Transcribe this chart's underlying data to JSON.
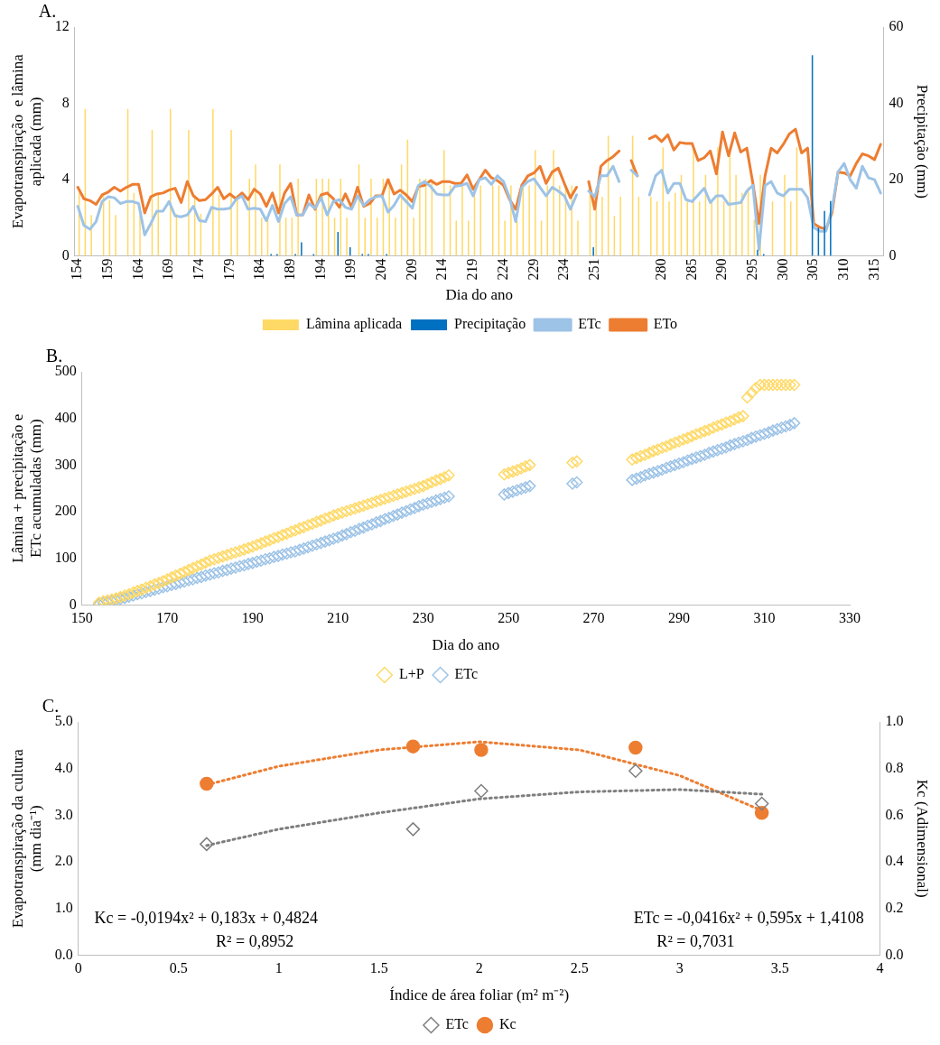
{
  "chart_data": [
    {
      "type": "bar",
      "title": "A.",
      "xlabel": "Dia do ano",
      "ylabel": "Evapotranspiração  e lâmina aplicada (mm)",
      "y2label": "Precipitação (mm)",
      "legend": "bottom",
      "categories": [
        "154",
        null,
        null,
        null,
        null,
        "159",
        null,
        null,
        null,
        null,
        "164",
        null,
        null,
        null,
        null,
        "169",
        null,
        null,
        null,
        null,
        "174",
        null,
        null,
        null,
        null,
        "179",
        null,
        null,
        null,
        null,
        "184",
        null,
        null,
        null,
        null,
        "189",
        null,
        null,
        null,
        null,
        "194",
        null,
        null,
        null,
        null,
        "199",
        null,
        null,
        null,
        null,
        "204",
        null,
        null,
        null,
        null,
        "209",
        null,
        null,
        null,
        null,
        "214",
        null,
        null,
        null,
        null,
        "219",
        null,
        null,
        null,
        null,
        "224",
        null,
        null,
        null,
        null,
        "229",
        null,
        null,
        null,
        null,
        "234",
        null,
        null,
        null,
        null,
        "251",
        null,
        null,
        null,
        null,
        null,
        null,
        null,
        null,
        null,
        null,
        "280",
        null,
        null,
        null,
        null,
        "285",
        null,
        null,
        null,
        null,
        "290",
        null,
        null,
        null,
        null,
        "295",
        null,
        null,
        null,
        null,
        "300",
        null,
        null,
        null,
        null,
        "305",
        null,
        null,
        null,
        null,
        "310",
        null,
        null,
        null,
        null,
        "315",
        null
      ],
      "ylim": [
        0,
        12
      ],
      "yticks": [
        0,
        4,
        8,
        12
      ],
      "y2lim": [
        0,
        60
      ],
      "y2ticks": [
        0,
        20,
        40,
        60
      ],
      "series": [
        {
          "name": "Lâmina aplicada",
          "type": "bar",
          "color": "#ffd966",
          "values": [
            3.3,
            7.7,
            2.15,
            null,
            3.2,
            2.95,
            2.15,
            null,
            7.7,
            3.3,
            2.15,
            null,
            6.6,
            3.2,
            null,
            7.7,
            2.2,
            null,
            6.6,
            3.2,
            2.2,
            null,
            7.7,
            3.2,
            null,
            6.6,
            3.2,
            null,
            4.05,
            4.8,
            2.0,
            2.0,
            null,
            4.8,
            2.0,
            2.0,
            4.05,
            null,
            null,
            4.05,
            4.05,
            4.05,
            2.0,
            4.05,
            2.0,
            null,
            4.8,
            2.0,
            4.05,
            2.0,
            4.05,
            4.05,
            2.0,
            4.8,
            6.1,
            2.0,
            4.05,
            4.05,
            4.05,
            null,
            5.55,
            3.7,
            1.85,
            3.7,
            1.85,
            3.7,
            3.7,
            null,
            3.7,
            3.7,
            1.85,
            3.7,
            1.85,
            3.7,
            3.7,
            5.55,
            1.85,
            3.7,
            5.55,
            3.7,
            3.7,
            3.7,
            1.85,
            null,
            3.7,
            3.6,
            3.1,
            6.3,
            2.1,
            3.1,
            null,
            6.3,
            3.1,
            null,
            3.1,
            2.85,
            5.7,
            2.85,
            3.3,
            4.25,
            2.85,
            5.7,
            2.85,
            4.25,
            2.85,
            5.7,
            2.85,
            5.7,
            4.25,
            3.3,
            3.6,
            1.9,
            4.25,
            null,
            2.85,
            null,
            4.25,
            2.85,
            5.7,
            null,
            null,
            null,
            null,
            null,
            null,
            null,
            null,
            null,
            null,
            null,
            null,
            null,
            null
          ]
        },
        {
          "name": "Precipitação",
          "type": "bar",
          "axis": "y2",
          "color": "#0070c0",
          "values": [
            null,
            null,
            null,
            null,
            null,
            null,
            null,
            null,
            null,
            null,
            null,
            null,
            null,
            null,
            null,
            null,
            null,
            null,
            null,
            null,
            null,
            null,
            null,
            null,
            null,
            null,
            null,
            null,
            null,
            null,
            null,
            null,
            0.5,
            0.5,
            null,
            null,
            0.5,
            3.6,
            null,
            0.5,
            null,
            null,
            null,
            6.3,
            null,
            2.3,
            null,
            0.5,
            0.5,
            null,
            null,
            0.5,
            null,
            null,
            null,
            null,
            null,
            null,
            null,
            null,
            null,
            null,
            null,
            null,
            null,
            null,
            null,
            null,
            null,
            null,
            null,
            null,
            null,
            null,
            null,
            null,
            null,
            null,
            null,
            null,
            null,
            null,
            null,
            null,
            null,
            2.3,
            null,
            null,
            null,
            null,
            null,
            null,
            null,
            null,
            null,
            null,
            null,
            null,
            null,
            null,
            null,
            null,
            null,
            null,
            null,
            null,
            null,
            null,
            null,
            null,
            null,
            null,
            1.6,
            0.5,
            null,
            null,
            null,
            null,
            null,
            null,
            null,
            52.6,
            7.4,
            11.8,
            14.4,
            null,
            null,
            null,
            null,
            null,
            null,
            null,
            null
          ]
        },
        {
          "name": "ETc",
          "type": "line",
          "color": "#9dc3e6",
          "values": [
            2.6,
            1.6,
            1.4,
            1.8,
            2.85,
            3.1,
            3.05,
            2.75,
            2.85,
            2.85,
            2.75,
            1.1,
            1.7,
            2.35,
            2.35,
            2.85,
            2.1,
            2.05,
            2.15,
            2.6,
            1.85,
            1.8,
            2.55,
            2.45,
            2.45,
            2.5,
            2.95,
            3.15,
            2.45,
            2.5,
            2.45,
            1.85,
            2.65,
            1.8,
            2.75,
            3.1,
            2.15,
            2.15,
            2.75,
            2.5,
            3.05,
            2.15,
            2.85,
            2.95,
            2.55,
            2.45,
            3.15,
            2.65,
            2.95,
            3.1,
            3.15,
            2.3,
            2.65,
            3.2,
            2.85,
            2.5,
            3.7,
            3.9,
            3.65,
            3.25,
            3.2,
            3.2,
            3.65,
            3.7,
            3.8,
            3.15,
            4.0,
            4.1,
            3.75,
            4.2,
            3.9,
            3.05,
            1.8,
            3.6,
            3.9,
            4.05,
            3.6,
            3.15,
            3.6,
            3.4,
            3.15,
            2.45,
            3.2,
            null,
            3.4,
            3.1,
            4.2,
            4.2,
            4.7,
            3.9,
            null,
            4.5,
            4.2,
            null,
            3.2,
            4.2,
            4.5,
            3.3,
            3.8,
            3.8,
            2.95,
            2.85,
            3.2,
            3.55,
            2.8,
            3.15,
            3.15,
            2.7,
            2.75,
            2.8,
            3.4,
            3.7,
            0.35,
            3.7,
            3.9,
            3.3,
            3.15,
            3.5,
            3.5,
            3.5,
            3.05,
            1.5,
            1.3,
            1.3,
            2.45,
            4.4,
            4.85,
            4.0,
            3.55,
            4.7,
            4.1,
            4.0,
            3.3
          ]
        },
        {
          "name": "ETo",
          "type": "line",
          "color": "#ed7d31",
          "values": [
            3.6,
            3.0,
            2.9,
            2.7,
            3.2,
            3.35,
            3.6,
            3.4,
            3.6,
            3.75,
            3.75,
            2.25,
            3.1,
            3.25,
            3.3,
            3.45,
            3.55,
            2.8,
            3.9,
            3.15,
            2.9,
            2.95,
            3.25,
            3.6,
            3.0,
            3.25,
            3.0,
            3.3,
            2.95,
            3.5,
            3.25,
            2.6,
            3.3,
            2.25,
            3.3,
            3.8,
            2.15,
            2.15,
            3.2,
            2.45,
            3.2,
            3.3,
            3.0,
            2.55,
            3.25,
            2.55,
            3.6,
            2.6,
            2.75,
            3.15,
            3.15,
            4.0,
            3.25,
            3.45,
            3.2,
            2.85,
            3.65,
            3.7,
            3.95,
            3.75,
            3.9,
            3.9,
            3.8,
            3.8,
            4.25,
            3.5,
            4.0,
            4.5,
            4.1,
            3.95,
            3.7,
            2.95,
            2.45,
            3.7,
            4.2,
            4.35,
            4.7,
            3.8,
            4.4,
            4.6,
            3.8,
            3.05,
            3.6,
            null,
            3.9,
            2.45,
            4.7,
            5.0,
            5.2,
            5.5,
            null,
            5.0,
            4.2,
            null,
            6.15,
            6.3,
            6.0,
            6.35,
            5.55,
            5.95,
            5.9,
            5.9,
            5.0,
            5.15,
            5.5,
            4.3,
            6.5,
            5.25,
            6.45,
            5.45,
            5.65,
            3.8,
            1.7,
            4.2,
            5.65,
            5.4,
            5.85,
            6.4,
            6.65,
            5.4,
            5.65,
            1.7,
            1.5,
            1.4,
            2.25,
            4.4,
            4.35,
            4.2,
            4.85,
            5.35,
            5.25,
            5.05,
            5.85
          ]
        }
      ]
    },
    {
      "type": "scatter",
      "title": "B.",
      "xlabel": "Dia do ano",
      "ylabel": "Lâmina + precipitação e ETc acumuladas (mm)",
      "legend": "bottom",
      "marker": "diamond",
      "xlim": [
        150,
        330
      ],
      "xticks": [
        150,
        170,
        190,
        210,
        230,
        250,
        270,
        290,
        310,
        330
      ],
      "ylim": [
        0,
        500
      ],
      "yticks": [
        0,
        100,
        200,
        300,
        400,
        500
      ],
      "x": [
        154,
        155,
        156,
        157,
        158,
        159,
        160,
        161,
        162,
        163,
        164,
        165,
        166,
        167,
        168,
        169,
        170,
        171,
        172,
        173,
        174,
        175,
        176,
        177,
        178,
        179,
        180,
        181,
        182,
        183,
        184,
        185,
        186,
        187,
        188,
        189,
        190,
        191,
        192,
        193,
        194,
        195,
        196,
        197,
        198,
        199,
        200,
        201,
        202,
        203,
        204,
        205,
        206,
        207,
        208,
        209,
        210,
        211,
        212,
        213,
        214,
        215,
        216,
        217,
        218,
        219,
        220,
        221,
        222,
        223,
        224,
        225,
        226,
        227,
        228,
        229,
        230,
        231,
        232,
        233,
        234,
        235,
        236,
        249,
        250,
        251,
        252,
        253,
        254,
        255,
        265,
        266,
        279,
        280,
        281,
        282,
        283,
        284,
        285,
        286,
        287,
        288,
        289,
        290,
        291,
        292,
        293,
        294,
        295,
        296,
        297,
        298,
        299,
        300,
        301,
        302,
        303,
        304,
        305,
        306,
        307,
        308,
        309,
        310,
        311,
        312,
        313,
        314,
        315,
        316,
        317
      ],
      "series": [
        {
          "name": "L+P",
          "color": "#ffd966",
          "values": [
            5,
            8,
            10,
            12,
            14,
            17,
            20,
            23,
            27,
            30,
            33,
            37,
            40,
            44,
            47,
            51,
            55,
            59,
            63,
            67,
            71,
            75,
            79,
            83,
            87,
            91,
            95,
            98,
            101,
            104,
            107,
            110,
            113,
            116,
            119,
            122,
            125,
            129,
            132,
            136,
            139,
            143,
            146,
            150,
            153,
            157,
            160,
            164,
            167,
            171,
            174,
            178,
            181,
            185,
            188,
            192,
            195,
            198,
            201,
            204,
            207,
            210,
            213,
            216,
            219,
            222,
            225,
            228,
            231,
            234,
            237,
            240,
            243,
            246,
            249,
            252,
            255,
            259,
            263,
            267,
            270,
            274,
            278,
            280,
            283,
            286,
            289,
            293,
            297,
            300,
            305,
            308,
            312,
            315,
            319,
            322,
            326,
            330,
            333,
            337,
            340,
            344,
            348,
            351,
            355,
            358,
            362,
            366,
            369,
            373,
            376,
            380,
            384,
            387,
            391,
            394,
            398,
            402,
            405,
            445,
            455,
            465,
            472,
            472,
            472,
            472,
            472,
            472,
            472,
            472,
            472
          ]
        },
        {
          "name": "ETc",
          "color": "#9dc3e6",
          "values": [
            2,
            4,
            6,
            9,
            11,
            13,
            15,
            18,
            20,
            23,
            25,
            28,
            30,
            33,
            35,
            38,
            40,
            43,
            45,
            48,
            50,
            53,
            55,
            58,
            60,
            63,
            65,
            68,
            70,
            73,
            75,
            78,
            80,
            83,
            85,
            88,
            90,
            93,
            95,
            98,
            100,
            103,
            105,
            108,
            110,
            113,
            115,
            118,
            121,
            124,
            127,
            130,
            133,
            136,
            139,
            142,
            145,
            149,
            152,
            156,
            159,
            163,
            166,
            170,
            173,
            177,
            180,
            184,
            187,
            191,
            194,
            198,
            201,
            205,
            208,
            212,
            215,
            218,
            221,
            224,
            227,
            230,
            233,
            237,
            240,
            243,
            246,
            249,
            252,
            255,
            260,
            263,
            268,
            271,
            274,
            278,
            281,
            284,
            287,
            290,
            294,
            297,
            300,
            303,
            306,
            310,
            313,
            316,
            319,
            322,
            326,
            329,
            332,
            335,
            338,
            342,
            345,
            348,
            351,
            354,
            358,
            361,
            364,
            367,
            370,
            374,
            377,
            380,
            383,
            386,
            390
          ]
        }
      ]
    },
    {
      "type": "scatter",
      "title": "C.",
      "xlabel": "Índice de área foliar (m² m⁻²)",
      "ylabel": "Evapotranspiração da cultura (mm dia⁻¹)",
      "y2label": "Kc (Adimensional)",
      "legend": "bottom",
      "xlim": [
        0,
        4
      ],
      "xticks": [
        0,
        0.5,
        1,
        1.5,
        2,
        2.5,
        3,
        3.5,
        4
      ],
      "ylim": [
        0,
        5
      ],
      "yticks": [
        {
          "value": 0,
          "label": "0.0"
        },
        {
          "value": 1,
          "label": "1.0"
        },
        {
          "value": 2,
          "label": "2.0"
        },
        {
          "value": 3,
          "label": "3.0"
        },
        {
          "value": 4,
          "label": "4.0"
        },
        {
          "value": 5,
          "label": "5.0"
        }
      ],
      "y2lim": [
        0,
        1
      ],
      "y2ticks": [
        {
          "value": 0,
          "label": "0.0"
        },
        {
          "value": 0.2,
          "label": "0.2"
        },
        {
          "value": 0.4,
          "label": "0.4"
        },
        {
          "value": 0.6,
          "label": "0.6"
        },
        {
          "value": 0.8,
          "label": "0.8"
        },
        {
          "value": 1,
          "label": "1.0"
        }
      ],
      "annotations": [
        "Kc = -0,0194x² + 0,183x + 0,4824",
        "R² = 0,8952",
        "ETc = -0,0416x² + 0,595x + 1,4108",
        "R² = 0,7031"
      ],
      "series": [
        {
          "name": "ETc",
          "color": "#7f7f7f",
          "marker": "diamond",
          "x": [
            0.64,
            1.67,
            2.01,
            2.78,
            3.41
          ],
          "values": [
            2.38,
            2.7,
            3.52,
            3.95,
            3.25
          ]
        },
        {
          "name": "Kc",
          "color": "#ed7d31",
          "marker": "circle",
          "axis": "y2",
          "x": [
            0.64,
            1.67,
            2.01,
            2.78,
            3.41
          ],
          "values": [
            0.735,
            0.895,
            0.88,
            0.89,
            0.61
          ]
        },
        {
          "type": "line",
          "color": "#7f7f7f",
          "line_style": "dotted",
          "x": [
            0.64,
            1.0,
            1.5,
            2.0,
            2.5,
            3.0,
            3.41
          ],
          "values": [
            2.35,
            2.7,
            3.05,
            3.35,
            3.5,
            3.55,
            3.45
          ]
        },
        {
          "type": "line",
          "color": "#ed7d31",
          "line_style": "dotted",
          "axis": "y2",
          "x": [
            0.64,
            1.0,
            1.5,
            2.0,
            2.5,
            3.0,
            3.41
          ],
          "values": [
            0.73,
            0.81,
            0.88,
            0.915,
            0.88,
            0.77,
            0.62
          ]
        }
      ]
    }
  ]
}
